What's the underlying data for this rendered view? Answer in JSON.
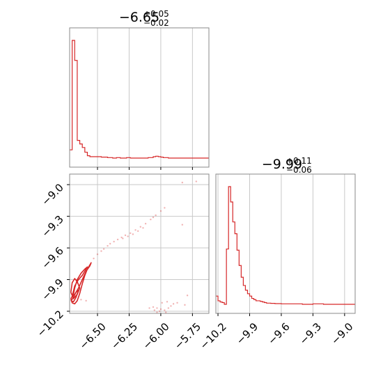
{
  "colors": {
    "series": "#d62728",
    "frame": "#888888",
    "grid": "#c8c8c8"
  },
  "chart_data": [
    {
      "type": "histogram",
      "panel": "top-left",
      "title": {
        "median": "−6.65",
        "plus": "+0.05",
        "minus": "−0.02"
      },
      "xlim": [
        -6.72,
        -5.62
      ],
      "grid": true,
      "step_x": [
        -6.72,
        -6.7,
        -6.68,
        -6.66,
        -6.64,
        -6.62,
        -6.6,
        -6.58,
        -6.56,
        -6.52,
        -6.47,
        -6.42,
        -6.38,
        -6.35,
        -6.32,
        -6.27,
        -6.24,
        -6.2,
        -6.15,
        -6.1,
        -6.06,
        -6.04,
        -6.02,
        -6.0,
        -5.98,
        -5.94,
        -5.9,
        -5.62
      ],
      "step_y": [
        0.07,
        1.0,
        0.83,
        0.15,
        0.12,
        0.09,
        0.05,
        0.02,
        0.012,
        0.012,
        0.008,
        0.004,
        0.0,
        0.004,
        0.0,
        0.004,
        0.0,
        0.0,
        0.0,
        0.004,
        0.012,
        0.016,
        0.012,
        0.008,
        0.004,
        0.0,
        0.0
      ],
      "x_ticks": [
        -6.5,
        -6.25,
        -6.0,
        -5.75
      ]
    },
    {
      "type": "scatter",
      "panel": "bottom-left",
      "xlim": [
        -6.72,
        -5.62
      ],
      "ylim": [
        -10.22,
        -8.9
      ],
      "grid": true,
      "x_ticks": [
        -6.5,
        -6.25,
        -6.0,
        -5.75
      ],
      "x_tick_labels": [
        "−6.50",
        "−6.25",
        "−6.00",
        "−5.75"
      ],
      "y_ticks": [
        -9.0,
        -9.3,
        -9.6,
        -9.9,
        -10.2
      ],
      "y_tick_labels": [
        "−9.0",
        "−9.3",
        "−9.6",
        "−9.9",
        "−10.2"
      ],
      "contours": [
        [
          [
            -6.71,
            -10.08
          ],
          [
            -6.7,
            -10.12
          ],
          [
            -6.68,
            -10.13
          ],
          [
            -6.66,
            -10.1
          ],
          [
            -6.64,
            -10.03
          ],
          [
            -6.62,
            -9.94
          ],
          [
            -6.6,
            -9.86
          ],
          [
            -6.58,
            -9.8
          ],
          [
            -6.55,
            -9.74
          ],
          [
            -6.56,
            -9.77
          ],
          [
            -6.59,
            -9.82
          ],
          [
            -6.62,
            -9.9
          ],
          [
            -6.65,
            -9.98
          ],
          [
            -6.68,
            -10.04
          ],
          [
            -6.7,
            -10.06
          ],
          [
            -6.71,
            -10.08
          ]
        ],
        [
          [
            -6.71,
            -10.02
          ],
          [
            -6.7,
            -9.93
          ],
          [
            -6.68,
            -9.89
          ],
          [
            -6.66,
            -9.92
          ],
          [
            -6.64,
            -9.98
          ],
          [
            -6.66,
            -10.04
          ],
          [
            -6.69,
            -10.08
          ],
          [
            -6.71,
            -10.02
          ]
        ],
        [
          [
            -6.7,
            -10.06
          ],
          [
            -6.68,
            -9.96
          ],
          [
            -6.65,
            -9.9
          ],
          [
            -6.62,
            -9.86
          ],
          [
            -6.6,
            -9.82
          ],
          [
            -6.58,
            -9.78
          ],
          [
            -6.6,
            -9.8
          ],
          [
            -6.63,
            -9.84
          ],
          [
            -6.66,
            -9.9
          ],
          [
            -6.68,
            -9.98
          ],
          [
            -6.69,
            -10.04
          ],
          [
            -6.7,
            -10.06
          ]
        ],
        [
          [
            -6.71,
            -10.1
          ],
          [
            -6.69,
            -10.11
          ],
          [
            -6.67,
            -10.07
          ],
          [
            -6.65,
            -10.0
          ],
          [
            -6.67,
            -10.02
          ],
          [
            -6.69,
            -10.07
          ],
          [
            -6.71,
            -10.1
          ]
        ]
      ],
      "points": [
        [
          -6.53,
          -9.7
        ],
        [
          -6.5,
          -9.66
        ],
        [
          -6.47,
          -9.63
        ],
        [
          -6.45,
          -9.61
        ],
        [
          -6.42,
          -9.58
        ],
        [
          -6.4,
          -9.56
        ],
        [
          -6.37,
          -9.54
        ],
        [
          -6.34,
          -9.52
        ],
        [
          -6.31,
          -9.5
        ],
        [
          -6.28,
          -9.48
        ],
        [
          -6.24,
          -9.46
        ],
        [
          -6.2,
          -9.43
        ],
        [
          -6.16,
          -9.4
        ],
        [
          -6.12,
          -9.37
        ],
        [
          -6.08,
          -9.33
        ],
        [
          -6.04,
          -9.29
        ],
        [
          -6.0,
          -9.25
        ],
        [
          -5.97,
          -9.22
        ],
        [
          -6.3,
          -9.51
        ],
        [
          -6.22,
          -9.47
        ],
        [
          -6.14,
          -9.41
        ],
        [
          -6.06,
          -9.31
        ],
        [
          -6.18,
          -9.44
        ],
        [
          -6.26,
          -9.49
        ],
        [
          -5.72,
          -8.97
        ],
        [
          -5.83,
          -8.98
        ],
        [
          -5.83,
          -9.38
        ],
        [
          -6.59,
          -10.1
        ],
        [
          -6.63,
          -10.09
        ],
        [
          -6.06,
          -10.16
        ],
        [
          -6.03,
          -10.17
        ],
        [
          -6.0,
          -10.18
        ],
        [
          -5.97,
          -10.19
        ],
        [
          -5.94,
          -10.17
        ],
        [
          -5.92,
          -10.15
        ],
        [
          -6.05,
          -10.19
        ],
        [
          -6.01,
          -10.2
        ],
        [
          -5.96,
          -10.21
        ],
        [
          -5.9,
          -10.13
        ],
        [
          -5.87,
          -10.12
        ],
        [
          -5.81,
          -10.14
        ],
        [
          -5.79,
          -10.05
        ],
        [
          -6.09,
          -10.17
        ],
        [
          -5.99,
          -10.12
        ],
        [
          -6.03,
          -10.21
        ],
        [
          -5.95,
          -10.11
        ]
      ]
    },
    {
      "type": "histogram",
      "panel": "bottom-right",
      "title": {
        "median": "−9.99",
        "plus": "+0.11",
        "minus": "−0.06"
      },
      "xlim": [
        -10.22,
        -8.9
      ],
      "grid": true,
      "step_x": [
        -10.22,
        -10.2,
        -10.18,
        -10.16,
        -10.14,
        -10.12,
        -10.1,
        -10.08,
        -10.06,
        -10.04,
        -10.02,
        -10.0,
        -9.98,
        -9.96,
        -9.94,
        -9.92,
        -9.9,
        -9.88,
        -9.86,
        -9.84,
        -9.82,
        -9.8,
        -9.78,
        -9.76,
        -9.74,
        -9.72,
        -9.7,
        -9.66,
        -9.6,
        -9.5,
        -9.4,
        -9.3,
        -9.2,
        -8.9
      ],
      "step_y": [
        0.07,
        0.03,
        0.02,
        0.015,
        0.0,
        0.47,
        1.0,
        0.87,
        0.7,
        0.6,
        0.46,
        0.33,
        0.23,
        0.16,
        0.12,
        0.09,
        0.07,
        0.05,
        0.04,
        0.03,
        0.03,
        0.025,
        0.02,
        0.015,
        0.01,
        0.01,
        0.008,
        0.006,
        0.004,
        0.004,
        0.0,
        0.004,
        0.0
      ],
      "x_ticks": [
        -10.2,
        -9.9,
        -9.6,
        -9.3,
        -9.0
      ],
      "x_tick_labels": [
        "−10.2",
        "−9.9",
        "−9.6",
        "−9.3",
        "−9.0"
      ]
    }
  ]
}
